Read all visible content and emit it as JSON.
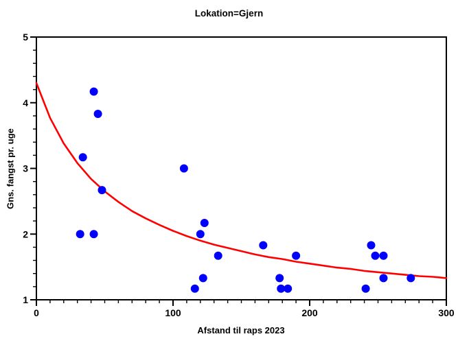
{
  "chart_data": {
    "type": "scatter",
    "title": "Lokation=Gjern",
    "xlabel": "Afstand til raps 2023",
    "ylabel": "Gns. fangst pr. uge",
    "xlim": [
      0,
      300
    ],
    "ylim": [
      1,
      5
    ],
    "x_major_ticks": [
      0,
      100,
      200,
      300
    ],
    "x_minor_step": 10,
    "y_major_ticks": [
      1,
      2,
      3,
      4,
      5
    ],
    "y_minor_step": 0.2,
    "grid": false,
    "legend": "none",
    "point_color": "#0000ff",
    "curve_color": "#ff0000",
    "frame_color": "#000000",
    "points": [
      [
        32,
        2.0
      ],
      [
        34,
        3.17
      ],
      [
        42,
        2.0
      ],
      [
        42,
        4.17
      ],
      [
        45,
        3.83
      ],
      [
        48,
        2.67
      ],
      [
        108,
        3.0
      ],
      [
        116,
        1.17
      ],
      [
        120,
        2.0
      ],
      [
        122,
        1.33
      ],
      [
        123,
        2.17
      ],
      [
        133,
        1.67
      ],
      [
        166,
        1.83
      ],
      [
        178,
        1.33
      ],
      [
        179,
        1.17
      ],
      [
        184,
        1.17
      ],
      [
        190,
        1.67
      ],
      [
        241,
        1.17
      ],
      [
        245,
        1.83
      ],
      [
        248,
        1.67
      ],
      [
        254,
        1.33
      ],
      [
        254,
        1.67
      ],
      [
        274,
        1.33
      ]
    ],
    "fit_curve_points": [
      [
        0,
        4.3
      ],
      [
        10,
        3.77
      ],
      [
        20,
        3.38
      ],
      [
        30,
        3.08
      ],
      [
        40,
        2.84
      ],
      [
        50,
        2.65
      ],
      [
        60,
        2.49
      ],
      [
        70,
        2.35
      ],
      [
        80,
        2.24
      ],
      [
        90,
        2.14
      ],
      [
        100,
        2.05
      ],
      [
        110,
        1.97
      ],
      [
        120,
        1.9
      ],
      [
        130,
        1.84
      ],
      [
        140,
        1.79
      ],
      [
        150,
        1.74
      ],
      [
        160,
        1.69
      ],
      [
        170,
        1.65
      ],
      [
        180,
        1.62
      ],
      [
        190,
        1.58
      ],
      [
        200,
        1.55
      ],
      [
        210,
        1.52
      ],
      [
        220,
        1.49
      ],
      [
        230,
        1.47
      ],
      [
        240,
        1.44
      ],
      [
        250,
        1.42
      ],
      [
        260,
        1.4
      ],
      [
        270,
        1.38
      ],
      [
        280,
        1.36
      ],
      [
        290,
        1.35
      ],
      [
        300,
        1.33
      ]
    ]
  }
}
